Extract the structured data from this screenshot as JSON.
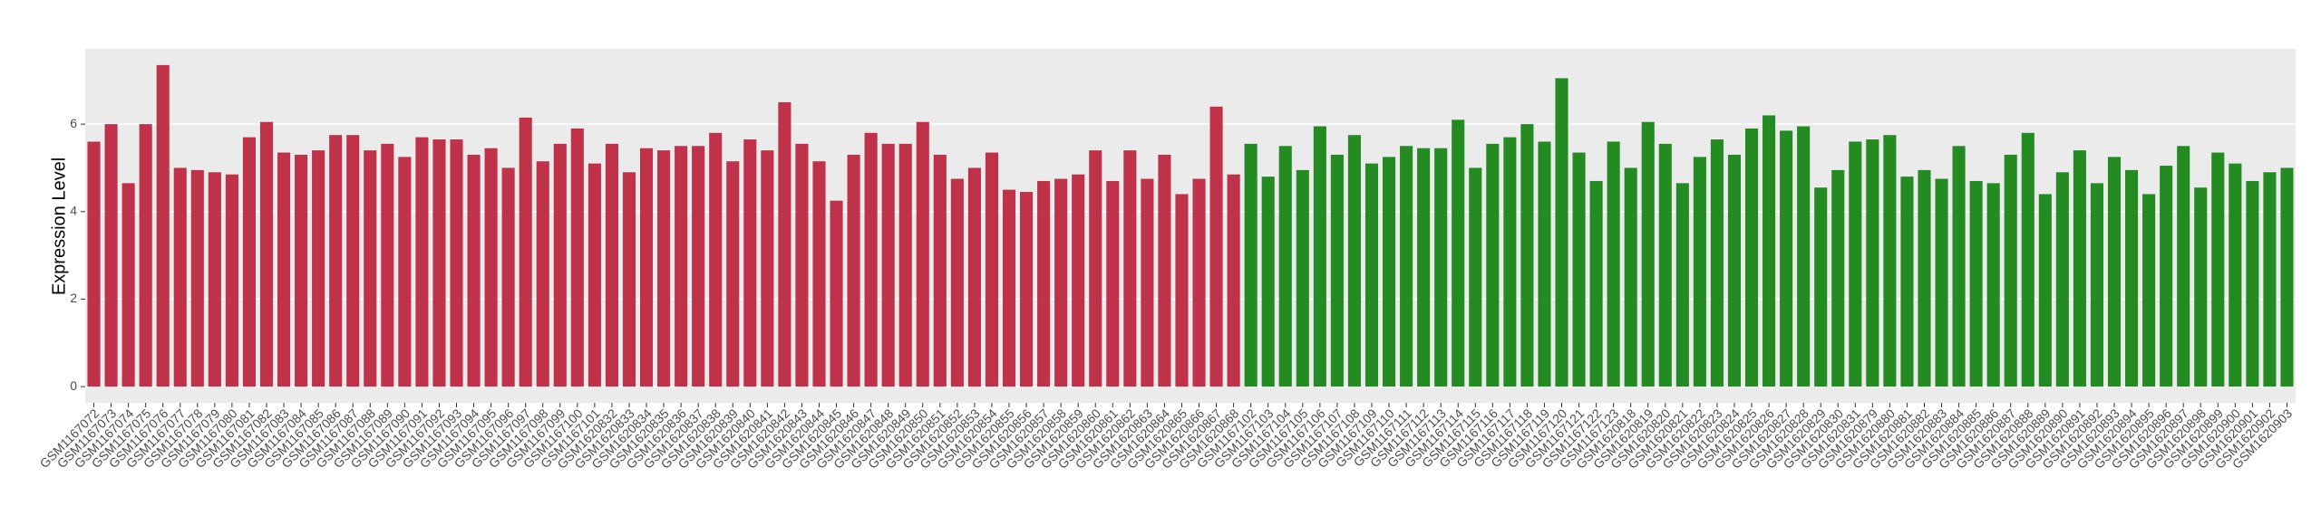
{
  "chart_data": {
    "type": "bar",
    "y_label": "Expression Level",
    "categories": [
      "GSM1167072",
      "GSM1167073",
      "GSM1167074",
      "GSM1167075",
      "GSM1167076",
      "GSM1167077",
      "GSM1167078",
      "GSM1167079",
      "GSM1167080",
      "GSM1167081",
      "GSM1167082",
      "GSM1167083",
      "GSM1167084",
      "GSM1167085",
      "GSM1167086",
      "GSM1167087",
      "GSM1167088",
      "GSM1167089",
      "GSM1167090",
      "GSM1167091",
      "GSM1167092",
      "GSM1167093",
      "GSM1167094",
      "GSM1167095",
      "GSM1167096",
      "GSM1167097",
      "GSM1167098",
      "GSM1167099",
      "GSM1167100",
      "GSM1167101",
      "GSM1620832",
      "GSM1620833",
      "GSM1620834",
      "GSM1620835",
      "GSM1620836",
      "GSM1620837",
      "GSM1620838",
      "GSM1620839",
      "GSM1620840",
      "GSM1620841",
      "GSM1620842",
      "GSM1620843",
      "GSM1620844",
      "GSM1620845",
      "GSM1620846",
      "GSM1620847",
      "GSM1620848",
      "GSM1620849",
      "GSM1620850",
      "GSM1620851",
      "GSM1620852",
      "GSM1620853",
      "GSM1620854",
      "GSM1620855",
      "GSM1620856",
      "GSM1620857",
      "GSM1620858",
      "GSM1620859",
      "GSM1620860",
      "GSM1620861",
      "GSM1620862",
      "GSM1620863",
      "GSM1620864",
      "GSM1620865",
      "GSM1620866",
      "GSM1620867",
      "GSM1620868",
      "GSM1167102",
      "GSM1167103",
      "GSM1167104",
      "GSM1167105",
      "GSM1167106",
      "GSM1167107",
      "GSM1167108",
      "GSM1167109",
      "GSM1167110",
      "GSM1167111",
      "GSM1167112",
      "GSM1167113",
      "GSM1167114",
      "GSM1167115",
      "GSM1167116",
      "GSM1167117",
      "GSM1167118",
      "GSM1167119",
      "GSM1167120",
      "GSM1167121",
      "GSM1167122",
      "GSM1167123",
      "GSM1620818",
      "GSM1620819",
      "GSM1620820",
      "GSM1620821",
      "GSM1620822",
      "GSM1620823",
      "GSM1620824",
      "GSM1620825",
      "GSM1620826",
      "GSM1620827",
      "GSM1620828",
      "GSM1620829",
      "GSM1620830",
      "GSM1620831",
      "GSM1620879",
      "GSM1620880",
      "GSM1620881",
      "GSM1620882",
      "GSM1620883",
      "GSM1620884",
      "GSM1620885",
      "GSM1620886",
      "GSM1620887",
      "GSM1620888",
      "GSM1620889",
      "GSM1620890",
      "GSM1620891",
      "GSM1620892",
      "GSM1620893",
      "GSM1620894",
      "GSM1620895",
      "GSM1620896",
      "GSM1620897",
      "GSM1620898",
      "GSM1620899",
      "GSM1620900",
      "GSM1620901",
      "GSM1620902",
      "GSM1620903"
    ],
    "values": [
      5.6,
      6.0,
      4.65,
      6.0,
      7.35,
      5.0,
      4.95,
      4.9,
      4.85,
      5.7,
      6.05,
      5.35,
      5.3,
      5.4,
      5.75,
      5.75,
      5.4,
      5.55,
      5.25,
      5.7,
      5.65,
      5.65,
      5.3,
      5.45,
      5.0,
      6.15,
      5.15,
      5.55,
      5.9,
      5.1,
      5.55,
      4.9,
      5.45,
      5.4,
      5.5,
      5.5,
      5.8,
      5.15,
      5.65,
      5.4,
      6.5,
      5.55,
      5.15,
      4.25,
      5.3,
      5.8,
      5.55,
      5.55,
      6.05,
      5.3,
      4.75,
      5.0,
      5.35,
      4.5,
      4.45,
      4.7,
      4.75,
      4.85,
      5.4,
      4.7,
      5.4,
      4.75,
      5.3,
      4.4,
      4.75,
      6.4,
      4.85,
      5.55,
      4.8,
      5.5,
      4.95,
      5.95,
      5.3,
      5.75,
      5.1,
      5.25,
      5.5,
      5.45,
      5.45,
      6.1,
      5.0,
      5.55,
      5.7,
      6.0,
      5.6,
      7.05,
      5.35,
      4.7,
      5.6,
      5.0,
      6.05,
      5.55,
      4.65,
      5.25,
      5.65,
      5.3,
      5.9,
      6.2,
      5.85,
      5.95,
      4.55,
      4.95,
      5.6,
      5.65,
      5.75,
      4.8,
      4.95,
      4.75,
      5.5,
      4.7,
      4.65,
      5.3,
      5.8,
      4.4,
      4.9,
      5.4,
      4.65,
      5.25,
      4.95,
      4.4,
      5.05,
      5.5,
      4.55,
      5.35,
      5.1,
      4.7,
      4.9,
      5.0
    ],
    "colors": [
      "#c0314a",
      "#c0314a",
      "#c0314a",
      "#c0314a",
      "#c0314a",
      "#c0314a",
      "#c0314a",
      "#c0314a",
      "#c0314a",
      "#c0314a",
      "#c0314a",
      "#c0314a",
      "#c0314a",
      "#c0314a",
      "#c0314a",
      "#c0314a",
      "#c0314a",
      "#c0314a",
      "#c0314a",
      "#c0314a",
      "#c0314a",
      "#c0314a",
      "#c0314a",
      "#c0314a",
      "#c0314a",
      "#c0314a",
      "#c0314a",
      "#c0314a",
      "#c0314a",
      "#c0314a",
      "#c0314a",
      "#c0314a",
      "#c0314a",
      "#c0314a",
      "#c0314a",
      "#c0314a",
      "#c0314a",
      "#c0314a",
      "#c0314a",
      "#c0314a",
      "#c0314a",
      "#c0314a",
      "#c0314a",
      "#c0314a",
      "#c0314a",
      "#c0314a",
      "#c0314a",
      "#c0314a",
      "#c0314a",
      "#c0314a",
      "#c0314a",
      "#c0314a",
      "#c0314a",
      "#c0314a",
      "#c0314a",
      "#c0314a",
      "#c0314a",
      "#c0314a",
      "#c0314a",
      "#c0314a",
      "#c0314a",
      "#c0314a",
      "#c0314a",
      "#c0314a",
      "#c0314a",
      "#c0314a",
      "#c0314a",
      "#238b22",
      "#238b22",
      "#238b22",
      "#238b22",
      "#238b22",
      "#238b22",
      "#238b22",
      "#238b22",
      "#238b22",
      "#238b22",
      "#238b22",
      "#238b22",
      "#238b22",
      "#238b22",
      "#238b22",
      "#238b22",
      "#238b22",
      "#238b22",
      "#238b22",
      "#238b22",
      "#238b22",
      "#238b22",
      "#238b22",
      "#238b22",
      "#238b22",
      "#238b22",
      "#238b22",
      "#238b22",
      "#238b22",
      "#238b22",
      "#238b22",
      "#238b22",
      "#238b22",
      "#238b22",
      "#238b22",
      "#238b22",
      "#238b22",
      "#238b22",
      "#238b22",
      "#238b22",
      "#238b22",
      "#238b22",
      "#238b22",
      "#238b22",
      "#238b22",
      "#238b22",
      "#238b22",
      "#238b22",
      "#238b22",
      "#238b22",
      "#238b22",
      "#238b22",
      "#238b22",
      "#238b22",
      "#238b22",
      "#238b22",
      "#238b22",
      "#238b22",
      "#238b22",
      "#238b22",
      "#238b22"
    ],
    "ylim": [
      -0.37,
      7.72
    ],
    "yticks": [
      0,
      2,
      4,
      6
    ],
    "grid": true
  }
}
